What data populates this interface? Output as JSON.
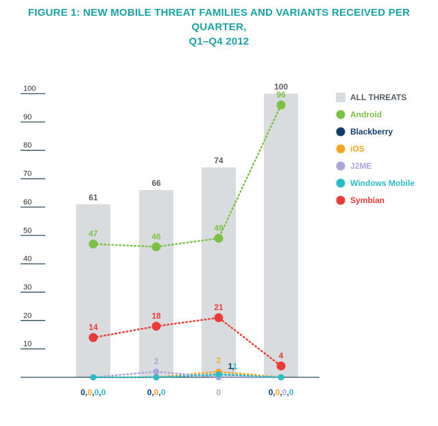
{
  "title_line1": "FIGURE 1: NEW MOBILE THREAT FAMILIES AND VARIANTS RECEIVED PER QUARTER,",
  "title_line2": "Q1–Q4 2012",
  "colors": {
    "title": "#1aa3a3",
    "bar": "#d9dcdf",
    "axis": "#2b4a5a",
    "tick_text": "#2b2b2b"
  },
  "chart_data": {
    "type": "bar",
    "categories": [
      "",
      "",
      "",
      ""
    ],
    "ylim": [
      0,
      100
    ],
    "yticks": [
      10,
      20,
      30,
      40,
      50,
      60,
      70,
      80,
      90,
      100
    ],
    "bars": {
      "name": "ALL THREATS",
      "color": "#d9dcdf",
      "values": [
        61,
        66,
        74,
        100
      ],
      "labels": [
        "61",
        "66",
        "74",
        "100"
      ]
    },
    "series": [
      {
        "name": "Android",
        "color": "#7cc242",
        "values": [
          47,
          46,
          49,
          96
        ],
        "labels": [
          "47",
          "46",
          "49",
          "96"
        ]
      },
      {
        "name": "Blackberry",
        "color": "#0f3b6a",
        "values": [
          0,
          0,
          1,
          0
        ],
        "labels": [
          "",
          "",
          "1",
          ""
        ]
      },
      {
        "name": "iOS",
        "color": "#f5a623",
        "values": [
          0,
          0,
          2,
          0
        ],
        "labels": [
          "",
          "",
          "2",
          ""
        ]
      },
      {
        "name": "J2ME",
        "color": "#a7a4d8",
        "values": [
          0,
          2,
          0,
          0
        ],
        "labels": [
          "",
          "2",
          "",
          ""
        ]
      },
      {
        "name": "Windows Mobile",
        "color": "#28bdc8",
        "values": [
          0,
          0,
          1,
          0
        ],
        "labels": [
          "",
          "",
          "1",
          ""
        ]
      },
      {
        "name": "Symbian",
        "color": "#ee3a37",
        "values": [
          14,
          18,
          21,
          4
        ],
        "labels": [
          "14",
          "18",
          "21",
          "4"
        ]
      }
    ],
    "bottom_labels": [
      [
        {
          "text": "0",
          "color": "#0f3b6a"
        },
        {
          "text": ",",
          "color": "#0f3b6a"
        },
        {
          "text": "0",
          "color": "#f5a623"
        },
        {
          "text": ",",
          "color": "#0f3b6a"
        },
        {
          "text": "0",
          "color": "#28bdc8"
        },
        {
          "text": ",",
          "color": "#0f3b6a"
        },
        {
          "text": "0",
          "color": "#28bdc8"
        }
      ],
      [
        {
          "text": "0",
          "color": "#0f3b6a"
        },
        {
          "text": ",",
          "color": "#0f3b6a"
        },
        {
          "text": "0",
          "color": "#f5a623"
        },
        {
          "text": ",",
          "color": "#0f3b6a"
        },
        {
          "text": "0",
          "color": "#28bdc8"
        }
      ],
      [
        {
          "text": "0",
          "color": "#a7a4d8"
        }
      ],
      [
        {
          "text": "0",
          "color": "#0f3b6a"
        },
        {
          "text": ",",
          "color": "#0f3b6a"
        },
        {
          "text": "0",
          "color": "#f5a623"
        },
        {
          "text": ",",
          "color": "#0f3b6a"
        },
        {
          "text": "0",
          "color": "#a7a4d8"
        },
        {
          "text": ",",
          "color": "#0f3b6a"
        },
        {
          "text": "0",
          "color": "#28bdc8"
        }
      ]
    ],
    "legend_position": "right",
    "grid": false
  }
}
